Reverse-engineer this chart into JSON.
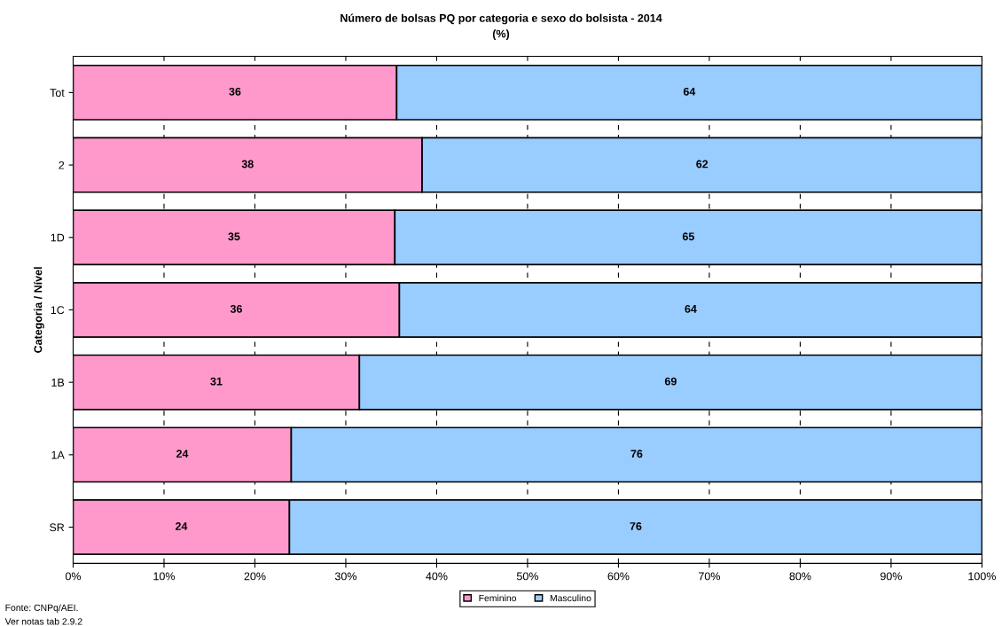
{
  "chart_data": {
    "type": "bar",
    "orientation": "horizontal",
    "stacked": true,
    "title": "Número de bolsas PQ por categoria e sexo do bolsista - 2014",
    "subtitle": "(%)",
    "ylabel": "Categoria / Nível",
    "categories": [
      "Tot",
      "2",
      "1D",
      "1C",
      "1B",
      "1A",
      "SR"
    ],
    "series": [
      {
        "name": "Feminino",
        "color": "#ff99cc",
        "values": [
          35.6,
          38.4,
          35.4,
          35.9,
          31.5,
          24.0,
          23.8
        ],
        "value_labels": [
          "36",
          "38",
          "35",
          "36",
          "31",
          "24",
          "24"
        ]
      },
      {
        "name": "Masculino",
        "color": "#99ccff",
        "values": [
          64.4,
          61.6,
          64.6,
          64.1,
          68.5,
          76.0,
          76.2
        ],
        "value_labels": [
          "64",
          "62",
          "65",
          "64",
          "69",
          "76",
          "76"
        ]
      }
    ],
    "xlim": [
      0,
      100
    ],
    "xticks": [
      {
        "value": 0,
        "label": "0%"
      },
      {
        "value": 10,
        "label": "10%"
      },
      {
        "value": 20,
        "label": "20%"
      },
      {
        "value": 30,
        "label": "30%"
      },
      {
        "value": 40,
        "label": "40%"
      },
      {
        "value": 50,
        "label": "50%"
      },
      {
        "value": 60,
        "label": "60%"
      },
      {
        "value": 70,
        "label": "70%"
      },
      {
        "value": 80,
        "label": "80%"
      },
      {
        "value": 90,
        "label": "90%"
      },
      {
        "value": 100,
        "label": "100%"
      }
    ],
    "grid": "x",
    "legend": "bottom",
    "annotations": [
      "Fonte: CNPq/AEI.",
      "Ver notas tab 2.9.2"
    ]
  }
}
